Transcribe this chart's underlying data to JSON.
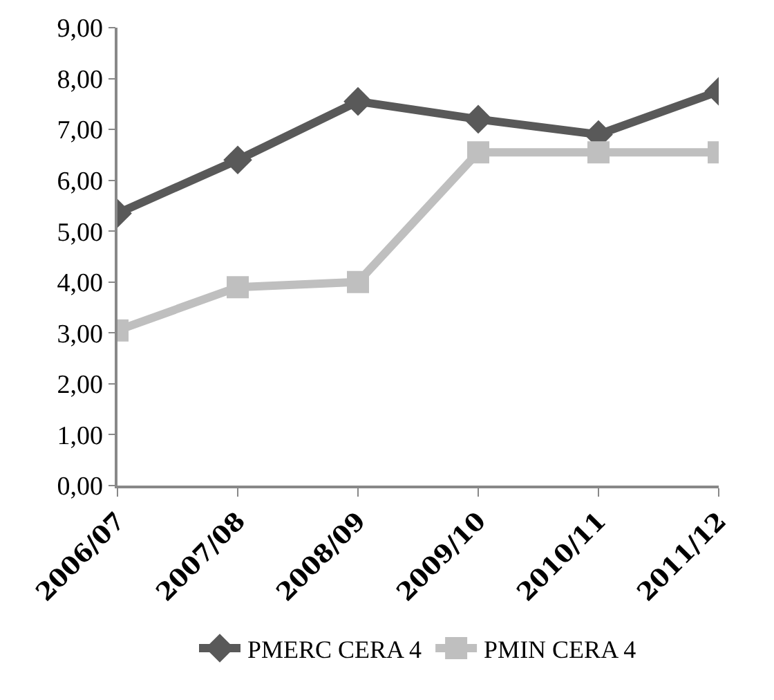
{
  "chart_data": {
    "type": "line",
    "categories": [
      "2006/07",
      "2007/08",
      "2008/09",
      "2009/10",
      "2010/11",
      "2011/12"
    ],
    "series": [
      {
        "name": "PMERC CERA 4",
        "color": "#595959",
        "marker": "diamond",
        "values": [
          5.35,
          6.4,
          7.55,
          7.2,
          6.9,
          7.75
        ]
      },
      {
        "name": "PMIN CERA 4",
        "color": "#bfbfbf",
        "marker": "square",
        "values": [
          3.05,
          3.9,
          4.0,
          6.55,
          6.55,
          6.55
        ]
      }
    ],
    "ylim": [
      0,
      9
    ],
    "yticks": [
      {
        "value": 0,
        "label": "0,00"
      },
      {
        "value": 1,
        "label": "1,00"
      },
      {
        "value": 2,
        "label": "2,00"
      },
      {
        "value": 3,
        "label": "3,00"
      },
      {
        "value": 4,
        "label": "4,00"
      },
      {
        "value": 5,
        "label": "5,00"
      },
      {
        "value": 6,
        "label": "6,00"
      },
      {
        "value": 7,
        "label": "7,00"
      },
      {
        "value": 8,
        "label": "8,00"
      },
      {
        "value": 9,
        "label": "9,00"
      }
    ],
    "grid": false,
    "legend": "bottom",
    "line_style": "solid"
  }
}
